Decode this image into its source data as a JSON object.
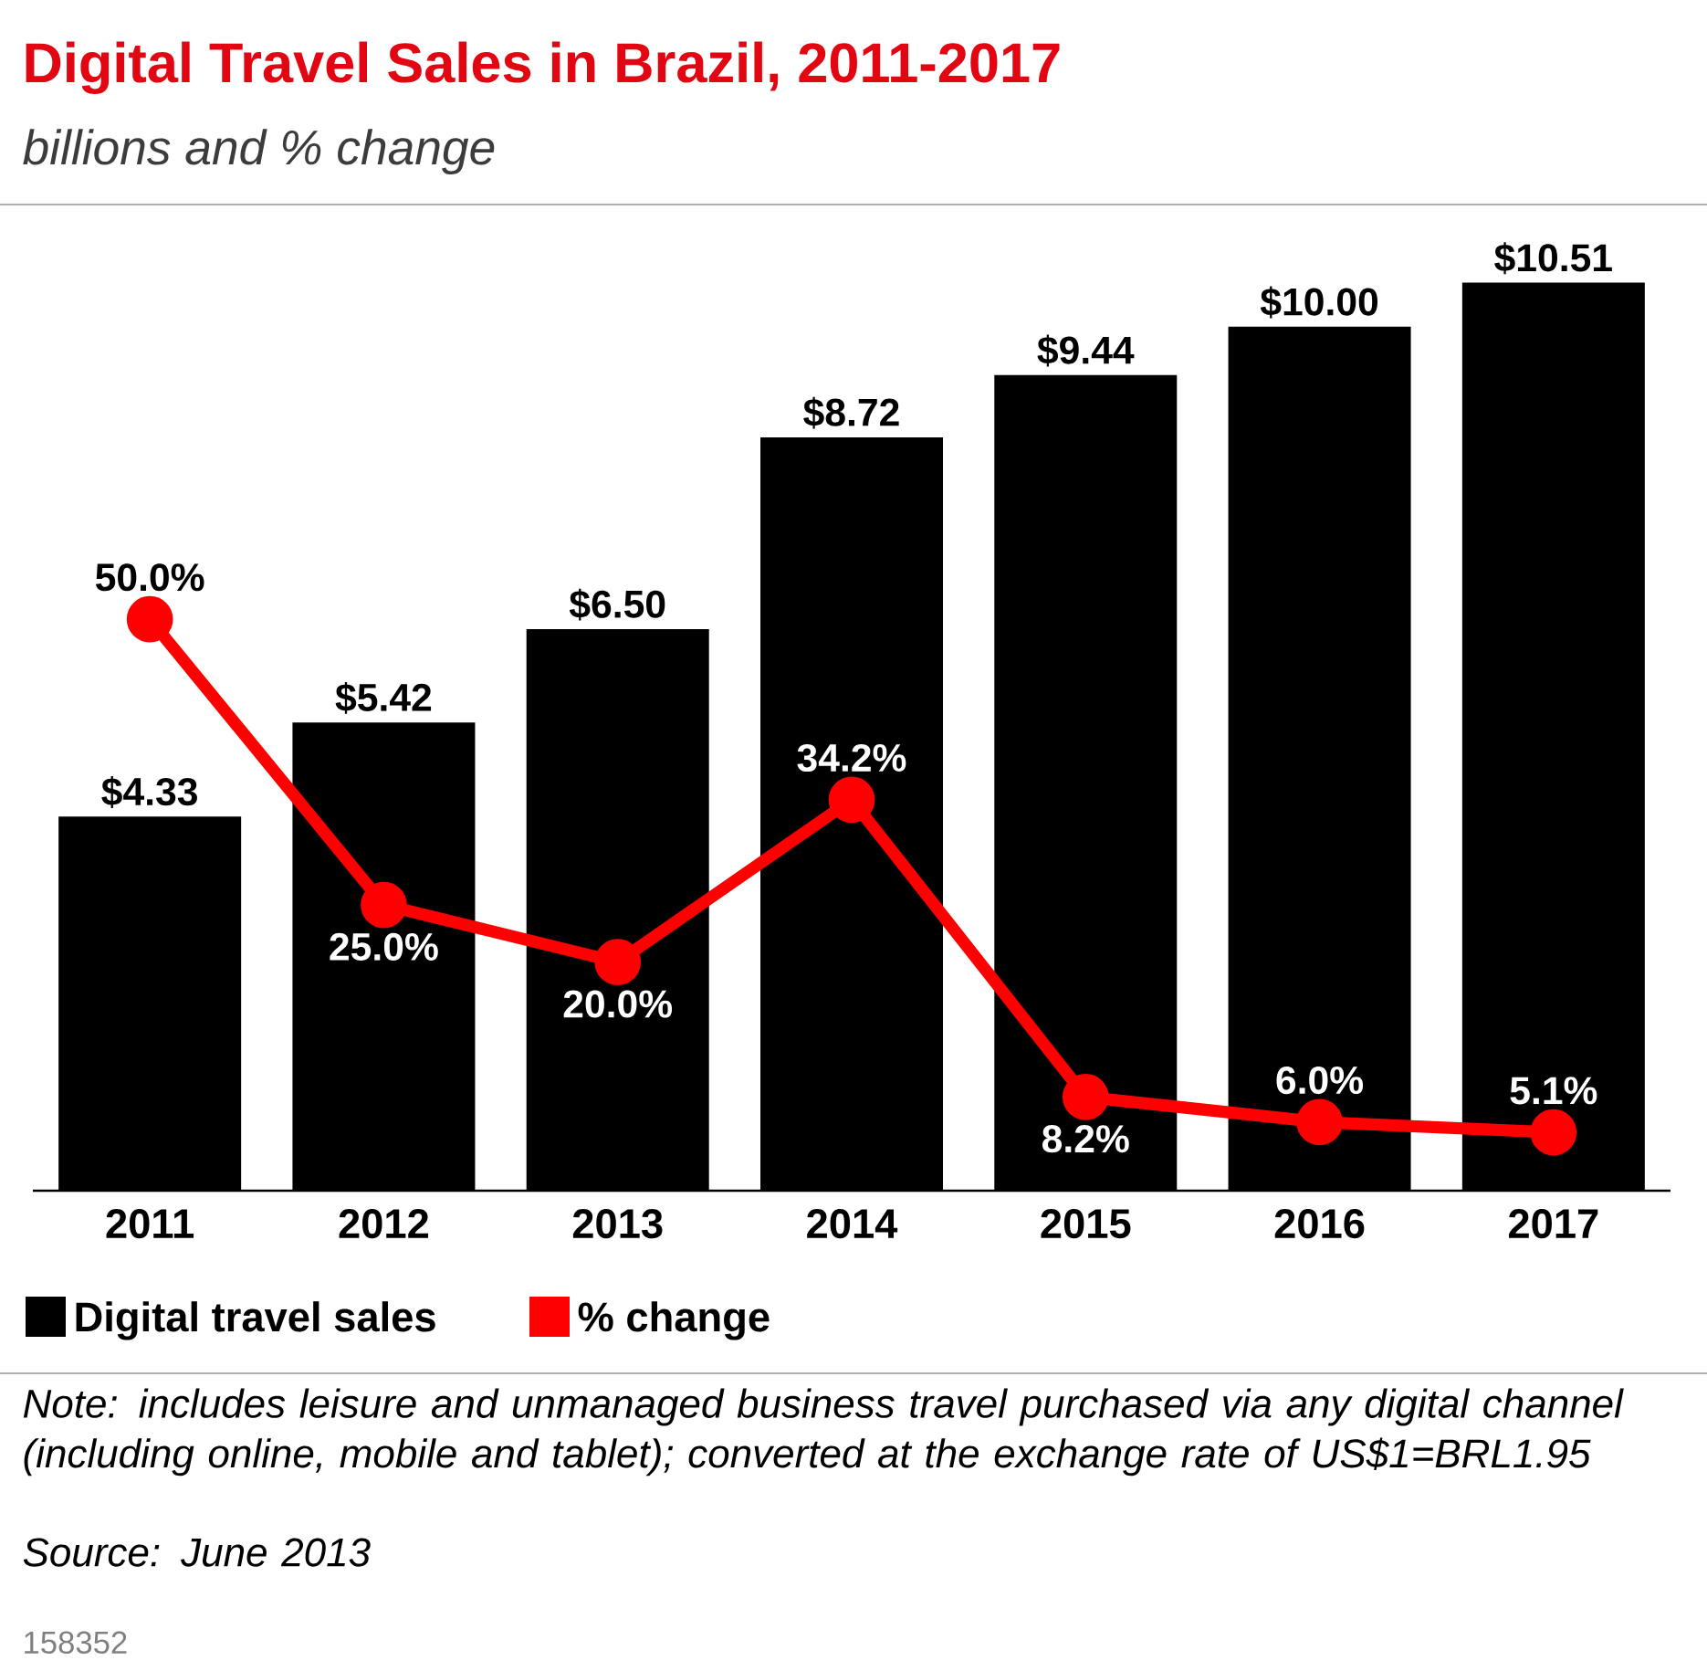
{
  "chart_data": {
    "type": "bar",
    "title": "Digital Travel Sales in Brazil, 2011-2017",
    "subtitle": "billions and % change",
    "categories": [
      "2011",
      "2012",
      "2013",
      "2014",
      "2015",
      "2016",
      "2017"
    ],
    "series": [
      {
        "name": "Digital travel sales",
        "color": "#000000",
        "values": [
          4.33,
          5.42,
          6.5,
          8.72,
          9.44,
          10.0,
          10.51
        ],
        "value_labels": [
          "$4.33",
          "$5.42",
          "$6.50",
          "$8.72",
          "$9.44",
          "$10.00",
          "$10.51"
        ]
      },
      {
        "name": "% change",
        "type": "line",
        "axis": "y2",
        "color": "#ff0000",
        "marker": "circle",
        "values": [
          50.0,
          25.0,
          20.0,
          34.2,
          8.2,
          6.0,
          5.1
        ],
        "value_labels": [
          "50.0%",
          "25.0%",
          "20.0%",
          "34.2%",
          "8.2%",
          "6.0%",
          "5.1%"
        ]
      }
    ],
    "legend": "bottom",
    "tick_labels": "x",
    "annotations": [
      "Note: includes leisure and unmanaged business travel purchased via any digital channel (including online, mobile and tablet); converted at the exchange rate of US$1=BRL1.95",
      "Source: June 2013",
      "158352"
    ]
  }
}
